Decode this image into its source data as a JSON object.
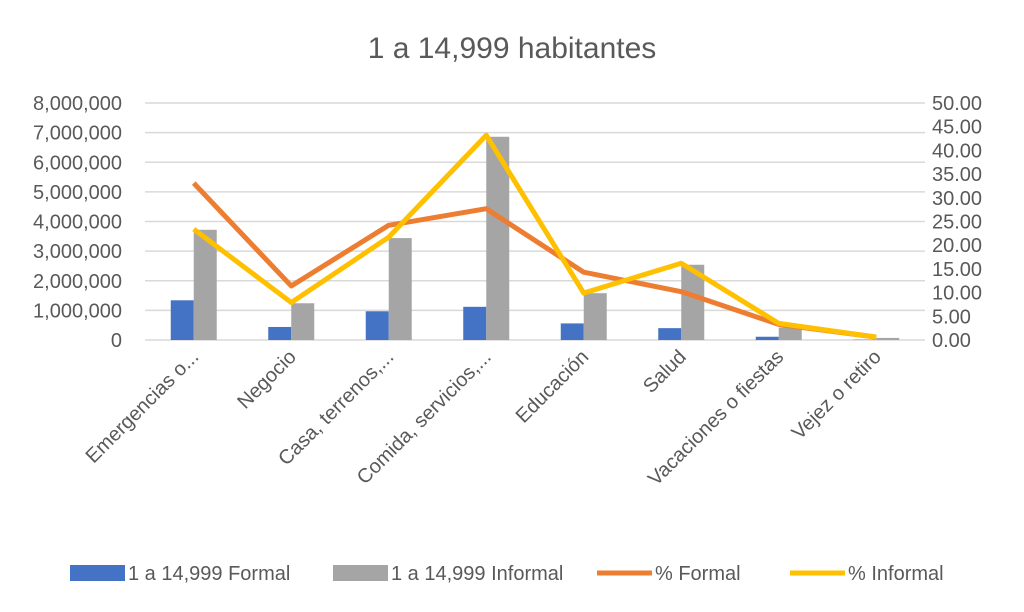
{
  "chart_data": {
    "type": "bar",
    "title": "1 a 14,999 habitantes",
    "categories": [
      "Emergencias o...",
      "Negocio",
      "Casa, terrenos,...",
      "Comida, servicios,...",
      "Educación",
      "Salud",
      "Vacaciones o fiestas",
      "Vejez o retiro"
    ],
    "y_left": {
      "ylim": [
        0,
        8000000
      ],
      "ticks": [
        "0",
        "1,000,000",
        "2,000,000",
        "3,000,000",
        "4,000,000",
        "5,000,000",
        "6,000,000",
        "7,000,000",
        "8,000,000"
      ]
    },
    "y_right": {
      "ylim": [
        0,
        50
      ],
      "ticks": [
        "0.00",
        "5.00",
        "10.00",
        "15.00",
        "20.00",
        "25.00",
        "30.00",
        "35.00",
        "40.00",
        "45.00",
        "50.00"
      ]
    },
    "grid": true,
    "legend_position": "bottom",
    "series": [
      {
        "name": "1 a 14,999 Formal",
        "kind": "bar",
        "axis": "left",
        "color": "#4472C4",
        "values": [
          1340000,
          440000,
          970000,
          1120000,
          560000,
          400000,
          110000,
          10000
        ]
      },
      {
        "name": "1 a 14,999 Informal",
        "kind": "bar",
        "axis": "left",
        "color": "#A5A5A5",
        "values": [
          3720000,
          1240000,
          3440000,
          6860000,
          1580000,
          2540000,
          420000,
          70000
        ]
      },
      {
        "name": "% Formal",
        "kind": "line",
        "axis": "right",
        "color": "#ED7D31",
        "values": [
          33.1,
          11.4,
          24.2,
          27.7,
          14.3,
          10.2,
          3.3,
          0.6
        ]
      },
      {
        "name": "% Informal",
        "kind": "line",
        "axis": "right",
        "color": "#FFC000",
        "values": [
          23.4,
          7.9,
          21.7,
          43.2,
          9.9,
          16.2,
          3.5,
          0.6
        ]
      }
    ]
  }
}
